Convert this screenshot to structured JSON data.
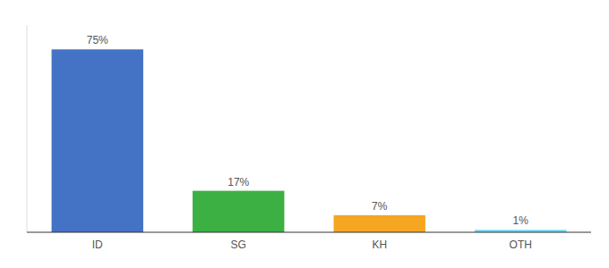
{
  "chart_data": {
    "type": "bar",
    "categories": [
      "ID",
      "SG",
      "KH",
      "OTH"
    ],
    "values": [
      75,
      17,
      7,
      1
    ],
    "value_labels": [
      "75%",
      "17%",
      "7%",
      "1%"
    ],
    "colors": [
      "#4472c4",
      "#3cb043",
      "#f5a623",
      "#74d7f7"
    ],
    "ylim": [
      0,
      85
    ],
    "data_labels": true,
    "tick_labels": "x",
    "grid": false
  }
}
